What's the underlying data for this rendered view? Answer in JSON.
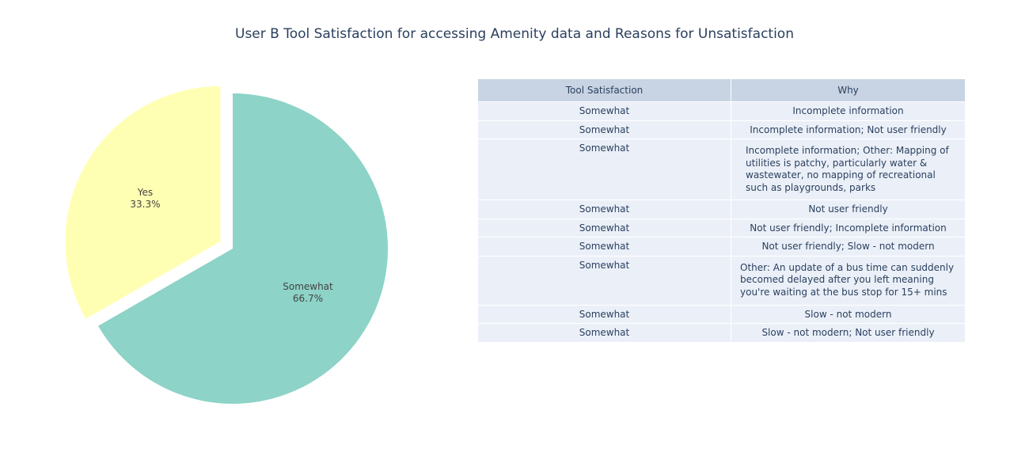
{
  "chart_data": [
    {
      "type": "pie",
      "title": "User B Tool Satisfaction for accessing Amenity data and Reasons for Unsatisfaction",
      "labels": [
        "Somewhat",
        "Yes"
      ],
      "values": [
        66.7,
        33.3
      ],
      "text_labels": [
        "66.7%",
        "33.3%"
      ],
      "pulled_slice": "Yes",
      "colors": [
        "#8dd3c7",
        "#ffffb3"
      ]
    },
    {
      "type": "table",
      "columns": [
        "Tool Satisfaction",
        "Why"
      ],
      "rows": [
        {
          "satisfaction": "Somewhat",
          "why": "Incomplete information"
        },
        {
          "satisfaction": "Somewhat",
          "why": "Incomplete information; Not user friendly"
        },
        {
          "satisfaction": "Somewhat",
          "why": "Incomplete information; Other: Mapping of utilities is patchy, particularly water & wastewater, no mapping of recreational such as playgrounds, parks"
        },
        {
          "satisfaction": "Somewhat",
          "why": "Not user friendly"
        },
        {
          "satisfaction": "Somewhat",
          "why": "Not user friendly; Incomplete information"
        },
        {
          "satisfaction": "Somewhat",
          "why": "Not user friendly; Slow - not modern"
        },
        {
          "satisfaction": "Somewhat",
          "why": "Other: An update of a bus time can suddenly becomed delayed after you left meaning you're waiting at the bus stop for 15+ mins"
        },
        {
          "satisfaction": "Somewhat",
          "why": "Slow - not modern"
        },
        {
          "satisfaction": "Somewhat",
          "why": "Slow - not modern; Not user friendly"
        }
      ],
      "header_color": "#c8d4e3",
      "cell_color": "#ebf0f8"
    }
  ]
}
